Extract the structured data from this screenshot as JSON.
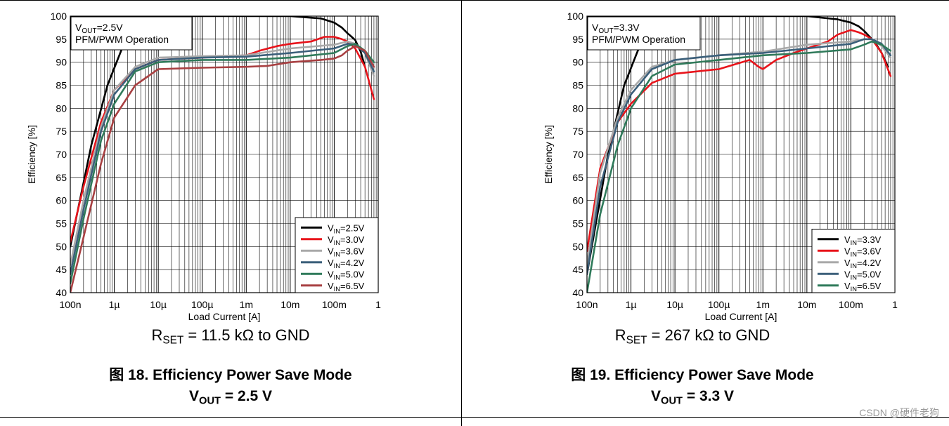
{
  "chart_data": [
    {
      "type": "line",
      "x_scale": "log",
      "xlim": [
        1e-07,
        1
      ],
      "ylim": [
        40,
        100
      ],
      "grid": true,
      "xlabel": "Load Current [A]",
      "ylabel": "Efficiency [%]",
      "xticks": [
        "100n",
        "1µ",
        "10µ",
        "100µ",
        "1m",
        "10m",
        "100m",
        "1"
      ],
      "yticks": [
        "40",
        "45",
        "50",
        "55",
        "60",
        "65",
        "70",
        "75",
        "80",
        "85",
        "90",
        "95",
        "100"
      ],
      "annotation": {
        "line1_prefix": "V",
        "line1_sub": "OUT",
        "line1_suffix": "=2.5V",
        "line2": "PFM/PWM Operation"
      },
      "legend_position": "bottom-right",
      "series": [
        {
          "name": "VIN=2.5V",
          "legend_prefix": "V",
          "legend_sub": "IN",
          "legend_suffix": "=2.5V",
          "color": "#000000",
          "x": [
            1e-07,
            3e-07,
            7e-07,
            1.5e-06,
            3e-06,
            0.002,
            0.01,
            0.05,
            0.1,
            0.15,
            0.2,
            0.25,
            0.3,
            0.4,
            0.5
          ],
          "y": [
            50,
            72,
            85,
            93,
            100,
            100,
            100,
            99.5,
            98.6,
            97.5,
            96.3,
            95.5,
            94.8,
            92.3,
            89
          ]
        },
        {
          "name": "VIN=3.0V",
          "legend_prefix": "V",
          "legend_sub": "IN",
          "legend_suffix": "=3.0V",
          "color": "#e8141b",
          "x": [
            1e-07,
            2e-07,
            5e-07,
            1e-06,
            3e-06,
            1e-05,
            0.0001,
            0.001,
            0.002,
            0.005,
            0.01,
            0.03,
            0.06,
            0.1,
            0.15,
            0.2,
            0.3,
            0.5,
            0.8
          ],
          "y": [
            51,
            63,
            77,
            84,
            88.5,
            90.5,
            91,
            91.5,
            92.5,
            93.5,
            94,
            94.5,
            95.5,
            95.5,
            95,
            94.5,
            93,
            89,
            82
          ]
        },
        {
          "name": "VIN=3.6V",
          "legend_prefix": "V",
          "legend_sub": "IN",
          "legend_suffix": "=3.6V",
          "color": "#a9a9a9",
          "x": [
            1e-07,
            2e-07,
            5e-07,
            1e-06,
            3e-06,
            1e-05,
            0.0001,
            0.001,
            0.01,
            0.1,
            0.2,
            0.3,
            0.5,
            0.8
          ],
          "y": [
            46,
            60,
            76,
            84,
            89,
            91,
            91.3,
            91.5,
            93,
            93.8,
            94.5,
            94,
            92,
            87
          ]
        },
        {
          "name": "VIN=4.2V",
          "legend_prefix": "V",
          "legend_sub": "IN",
          "legend_suffix": "=4.2V",
          "color": "#3b5f7a",
          "x": [
            1e-07,
            2e-07,
            5e-07,
            1e-06,
            3e-06,
            1e-05,
            0.0001,
            0.001,
            0.01,
            0.1,
            0.2,
            0.3,
            0.5,
            0.8
          ],
          "y": [
            44,
            58,
            75,
            83,
            88.5,
            90.5,
            91,
            91.2,
            92,
            93,
            94,
            93.8,
            92,
            88
          ]
        },
        {
          "name": "VIN=5.0V",
          "legend_prefix": "V",
          "legend_sub": "IN",
          "legend_suffix": "=5.0V",
          "color": "#2f7a5a",
          "x": [
            1e-07,
            2e-07,
            5e-07,
            1e-06,
            3e-06,
            1e-05,
            0.0001,
            0.001,
            0.01,
            0.1,
            0.2,
            0.3,
            0.5,
            0.8
          ],
          "y": [
            42,
            56,
            73,
            81,
            88,
            90,
            90.5,
            90.5,
            91,
            92,
            93.5,
            94,
            92.5,
            90
          ]
        },
        {
          "name": "VIN=6.5V",
          "legend_prefix": "V",
          "legend_sub": "IN",
          "legend_suffix": "=6.5V",
          "color": "#a84042",
          "x": [
            1e-07,
            2e-07,
            5e-07,
            1e-06,
            3e-06,
            1e-05,
            0.0001,
            0.001,
            0.003,
            0.01,
            0.05,
            0.1,
            0.15,
            0.2,
            0.3,
            0.5,
            0.8
          ],
          "y": [
            40,
            52,
            68,
            78,
            85,
            88.5,
            88.8,
            89,
            89.2,
            90,
            90.5,
            90.8,
            91.5,
            92.5,
            93.5,
            92.5,
            89
          ]
        }
      ]
    },
    {
      "type": "line",
      "x_scale": "log",
      "xlim": [
        1e-07,
        1
      ],
      "ylim": [
        40,
        100
      ],
      "grid": true,
      "xlabel": "Load Current [A]",
      "ylabel": "Efficiency [%]",
      "xticks": [
        "100n",
        "1µ",
        "10µ",
        "100µ",
        "1m",
        "10m",
        "100m",
        "1"
      ],
      "yticks": [
        "40",
        "45",
        "50",
        "55",
        "60",
        "65",
        "70",
        "75",
        "80",
        "85",
        "90",
        "95",
        "100"
      ],
      "annotation": {
        "line1_prefix": "V",
        "line1_sub": "OUT",
        "line1_suffix": "=3.3V",
        "line2": "PFM/PWM Operation"
      },
      "legend_position": "bottom-right",
      "series": [
        {
          "name": "VIN=3.3V",
          "legend_prefix": "V",
          "legend_sub": "IN",
          "legend_suffix": "=3.3V",
          "color": "#000000",
          "x": [
            1e-07,
            3e-07,
            7e-07,
            1.5e-06,
            3e-06,
            0.01,
            0.05,
            0.1,
            0.15,
            0.2,
            0.3,
            0.4,
            0.5,
            0.7
          ],
          "y": [
            44,
            70,
            85,
            93,
            100,
            100,
            99.3,
            98.6,
            97.8,
            96.8,
            95,
            93.5,
            92,
            89
          ]
        },
        {
          "name": "VIN=3.6V",
          "legend_prefix": "V",
          "legend_sub": "IN",
          "legend_suffix": "=3.6V",
          "color": "#e8141b",
          "x": [
            1e-07,
            2e-07,
            5e-07,
            1e-06,
            3e-06,
            1e-05,
            0.0001,
            0.0005,
            0.0008,
            0.001,
            0.002,
            0.005,
            0.01,
            0.03,
            0.05,
            0.1,
            0.15,
            0.2,
            0.3,
            0.5,
            0.8
          ],
          "y": [
            49,
            67,
            77,
            81,
            85.5,
            87.5,
            88.5,
            90.5,
            89,
            88.5,
            90.5,
            92,
            93,
            94.5,
            96,
            97,
            96.5,
            96,
            95,
            92,
            87
          ]
        },
        {
          "name": "VIN=4.2V",
          "legend_prefix": "V",
          "legend_sub": "IN",
          "legend_suffix": "=4.2V",
          "color": "#a9a9a9",
          "x": [
            1e-07,
            2e-07,
            5e-07,
            1e-06,
            3e-06,
            1e-05,
            0.0001,
            0.001,
            0.01,
            0.1,
            0.2,
            0.3,
            0.5,
            0.8
          ],
          "y": [
            46,
            66,
            78,
            84,
            89,
            90.5,
            91.5,
            92.3,
            93.8,
            94.5,
            95,
            95,
            93.5,
            91
          ]
        },
        {
          "name": "VIN=5.0V",
          "legend_prefix": "V",
          "legend_sub": "IN",
          "legend_suffix": "=5.0V",
          "color": "#3b5f7a",
          "x": [
            1e-07,
            2e-07,
            5e-07,
            1e-06,
            3e-06,
            1e-05,
            0.0001,
            0.001,
            0.01,
            0.1,
            0.2,
            0.3,
            0.5,
            0.8
          ],
          "y": [
            44,
            63,
            77,
            83,
            88.5,
            90.5,
            91.5,
            92,
            93,
            94,
            95,
            95,
            94,
            91.5
          ]
        },
        {
          "name": "VIN=6.5V",
          "legend_prefix": "V",
          "legend_sub": "IN",
          "legend_suffix": "=6.5V",
          "color": "#2f7a5a",
          "x": [
            1e-07,
            2e-07,
            5e-07,
            1e-06,
            3e-06,
            1e-05,
            0.0001,
            0.001,
            0.01,
            0.1,
            0.2,
            0.3,
            0.5,
            0.8
          ],
          "y": [
            40,
            57,
            72,
            80,
            87,
            89.5,
            90.5,
            91.5,
            92,
            92.8,
            93.8,
            94.5,
            93.8,
            92.5
          ]
        }
      ]
    }
  ],
  "panels": [
    {
      "rset_prefix": "R",
      "rset_sub": "SET",
      "rset_suffix": " = 11.5 kΩ to GND",
      "caption_line1": "图 18. Efficiency Power Save Mode",
      "caption_line2_prefix": "V",
      "caption_line2_sub": "OUT",
      "caption_line2_suffix": " = 2.5 V"
    },
    {
      "rset_prefix": "R",
      "rset_sub": "SET",
      "rset_suffix": " = 267 kΩ to GND",
      "caption_line1": "图 19. Efficiency Power Save Mode",
      "caption_line2_prefix": "V",
      "caption_line2_sub": "OUT",
      "caption_line2_suffix": " = 3.3 V"
    }
  ],
  "watermark": "CSDN @硬件老狗"
}
